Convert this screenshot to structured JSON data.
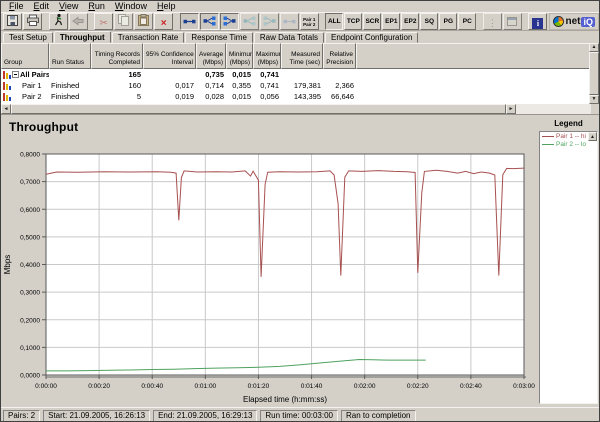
{
  "menu": {
    "items": [
      "File",
      "Edit",
      "View",
      "Run",
      "Window",
      "Help"
    ]
  },
  "toolbar": {
    "buttons": [
      {
        "icon": "save"
      },
      {
        "icon": "print"
      },
      {
        "gap": true
      },
      {
        "icon": "run"
      },
      {
        "icon": "stop",
        "disabled": true
      },
      {
        "gap": true
      },
      {
        "icon": "cut"
      },
      {
        "icon": "copy",
        "disabled": true
      },
      {
        "icon": "paste",
        "disabled": true
      },
      {
        "icon": "delete"
      },
      {
        "gap": true
      },
      {
        "icon": "pair-1",
        "pressed": true
      },
      {
        "icon": "pair-2",
        "pressed": true
      },
      {
        "icon": "pair-3",
        "pressed": true
      },
      {
        "icon": "pair-4",
        "disabled": true
      },
      {
        "icon": "pair-5",
        "disabled": true
      },
      {
        "icon": "pair-6",
        "disabled": true
      },
      {
        "icon": "pair-selector"
      },
      {
        "gap": true
      },
      {
        "text": "ALL",
        "pressed": true
      },
      {
        "text": "TCP"
      },
      {
        "text": "SCR"
      },
      {
        "text": "EP1"
      },
      {
        "text": "EP2"
      },
      {
        "text": "SQ"
      },
      {
        "text": "PG"
      },
      {
        "text": "PC"
      },
      {
        "gap": true
      },
      {
        "icon": "dots",
        "disabled": true
      },
      {
        "icon": "window",
        "disabled": true
      },
      {
        "gap": true
      },
      {
        "icon": "help"
      }
    ],
    "pair_selector_lines": [
      "Pair 1",
      "Pair 2"
    ],
    "logo": {
      "net": "net",
      "iq": "iQ"
    }
  },
  "tabs": {
    "active": "Throughput",
    "items": [
      "Test Setup",
      "Throughput",
      "Transaction Rate",
      "Response Time",
      "Raw Data Totals",
      "Endpoint Configuration"
    ]
  },
  "table": {
    "columns": [
      {
        "lines": [
          "Group"
        ]
      },
      {
        "lines": [
          "Run Status"
        ]
      },
      {
        "lines": [
          "Timing Records",
          "Completed"
        ]
      },
      {
        "lines": [
          "95% Confidence",
          "Interval"
        ]
      },
      {
        "lines": [
          "Average",
          "(Mbps)"
        ]
      },
      {
        "lines": [
          "Minimum",
          "(Mbps)"
        ]
      },
      {
        "lines": [
          "Maximum",
          "(Mbps)"
        ]
      },
      {
        "lines": [
          "Measured",
          "Time (sec)"
        ]
      },
      {
        "lines": [
          "Relative",
          "Precision"
        ]
      }
    ],
    "rows": [
      {
        "group": "All Pairs",
        "expandable": true,
        "bold": true,
        "status": "",
        "records": "165",
        "ci": "",
        "avg": "0,735",
        "min": "0,015",
        "max": "0,741",
        "time": "",
        "prec": ""
      },
      {
        "group": "Pair 1",
        "indent": true,
        "status": "Finished",
        "records": "160",
        "ci": "0,017",
        "avg": "0,714",
        "min": "0,355",
        "max": "0,741",
        "time": "179,381",
        "prec": "2,366"
      },
      {
        "group": "Pair 2",
        "indent": true,
        "status": "Finished",
        "records": "5",
        "ci": "0,019",
        "avg": "0,028",
        "min": "0,015",
        "max": "0,056",
        "time": "143,395",
        "prec": "66,646"
      }
    ]
  },
  "chart_data": {
    "type": "line",
    "title": "Throughput",
    "xlabel": "Elapsed time (h:mm:ss)",
    "ylabel": "Mbps",
    "xlim": [
      0,
      180
    ],
    "ylim": [
      0,
      0.8
    ],
    "grid": true,
    "legend_position": "right",
    "xticks": {
      "values": [
        0,
        20,
        40,
        60,
        80,
        100,
        120,
        140,
        160,
        180
      ],
      "labels": [
        "0:00:00",
        "0:00:20",
        "0:00:40",
        "0:01:00",
        "0:01:20",
        "0:01:40",
        "0:02:00",
        "0:02:20",
        "0:02:40",
        "0:03:00"
      ]
    },
    "yticks": {
      "values": [
        0,
        0.1,
        0.2,
        0.3,
        0.4,
        0.5,
        0.6,
        0.7,
        0.8
      ],
      "labels": [
        "0,0000",
        "0,1000",
        "0,2000",
        "0,3000",
        "0,4000",
        "0,5000",
        "0,6000",
        "0,7000",
        "0,8000"
      ]
    },
    "series": [
      {
        "name": "Pair 1 -- hi",
        "color": "#a85050",
        "points": [
          [
            0,
            0.727
          ],
          [
            4,
            0.735
          ],
          [
            12,
            0.734
          ],
          [
            22,
            0.736
          ],
          [
            32,
            0.735
          ],
          [
            42,
            0.736
          ],
          [
            47,
            0.734
          ],
          [
            49,
            0.731
          ],
          [
            50,
            0.56
          ],
          [
            51,
            0.715
          ],
          [
            52,
            0.739
          ],
          [
            57,
            0.735
          ],
          [
            64,
            0.736
          ],
          [
            70,
            0.735
          ],
          [
            75,
            0.739
          ],
          [
            77,
            0.72
          ],
          [
            78,
            0.738
          ],
          [
            80,
            0.705
          ],
          [
            81,
            0.355
          ],
          [
            82.5,
            0.69
          ],
          [
            83.5,
            0.734
          ],
          [
            88,
            0.736
          ],
          [
            95,
            0.735
          ],
          [
            102,
            0.736
          ],
          [
            107,
            0.739
          ],
          [
            108.5,
            0.724
          ],
          [
            110,
            0.62
          ],
          [
            111,
            0.36
          ],
          [
            112.5,
            0.716
          ],
          [
            114,
            0.739
          ],
          [
            119,
            0.737
          ],
          [
            125,
            0.74
          ],
          [
            131,
            0.737
          ],
          [
            136,
            0.736
          ],
          [
            139,
            0.733
          ],
          [
            140,
            0.37
          ],
          [
            141.5,
            0.66
          ],
          [
            142.5,
            0.737
          ],
          [
            147,
            0.741
          ],
          [
            151,
            0.737
          ],
          [
            155,
            0.731
          ],
          [
            158,
            0.737
          ],
          [
            161,
            0.729
          ],
          [
            164,
            0.735
          ],
          [
            167,
            0.731
          ],
          [
            169,
            0.724
          ],
          [
            170.5,
            0.36
          ],
          [
            172,
            0.725
          ],
          [
            173.5,
            0.748
          ],
          [
            176,
            0.747
          ],
          [
            180,
            0.749
          ]
        ]
      },
      {
        "name": "Pair 2 -- lo",
        "color": "#4ea25e",
        "points": [
          [
            0,
            0.015
          ],
          [
            8,
            0.015
          ],
          [
            16,
            0.016
          ],
          [
            24,
            0.017
          ],
          [
            32,
            0.018
          ],
          [
            40,
            0.02
          ],
          [
            48,
            0.021
          ],
          [
            56,
            0.023
          ],
          [
            64,
            0.025
          ],
          [
            72,
            0.026
          ],
          [
            80,
            0.028
          ],
          [
            88,
            0.031
          ],
          [
            96,
            0.037
          ],
          [
            104,
            0.044
          ],
          [
            112,
            0.051
          ],
          [
            118,
            0.056
          ],
          [
            123,
            0.055
          ],
          [
            129,
            0.054
          ],
          [
            135,
            0.054
          ],
          [
            143,
            0.054
          ]
        ]
      }
    ]
  },
  "legend": {
    "title": "Legend"
  },
  "status_bar": {
    "boxes": [
      "Pairs: 2",
      "Start: 21.09.2005, 16:26:13",
      "End: 21.09.2005, 16:29:13",
      "Run time: 00:03:00",
      "Ran to completion"
    ]
  }
}
